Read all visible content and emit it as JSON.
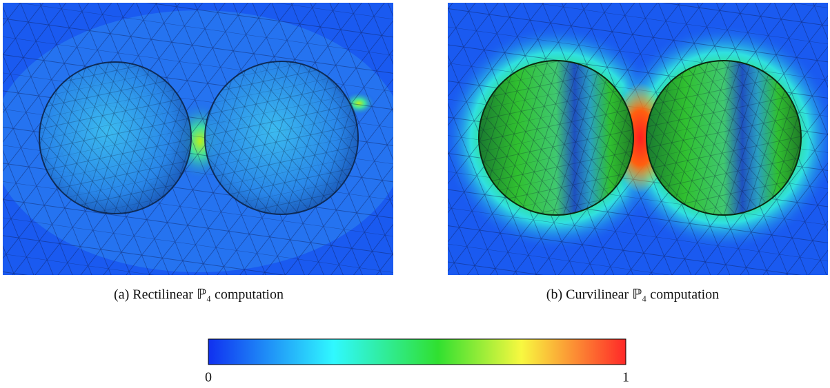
{
  "panels": [
    {
      "caption": "(a) Rectilinear ℙ₄ computation"
    },
    {
      "caption": "(b) Curvilinear ℙ₄ computation"
    }
  ],
  "colorbar": {
    "ticks": [
      0,
      1
    ]
  }
}
